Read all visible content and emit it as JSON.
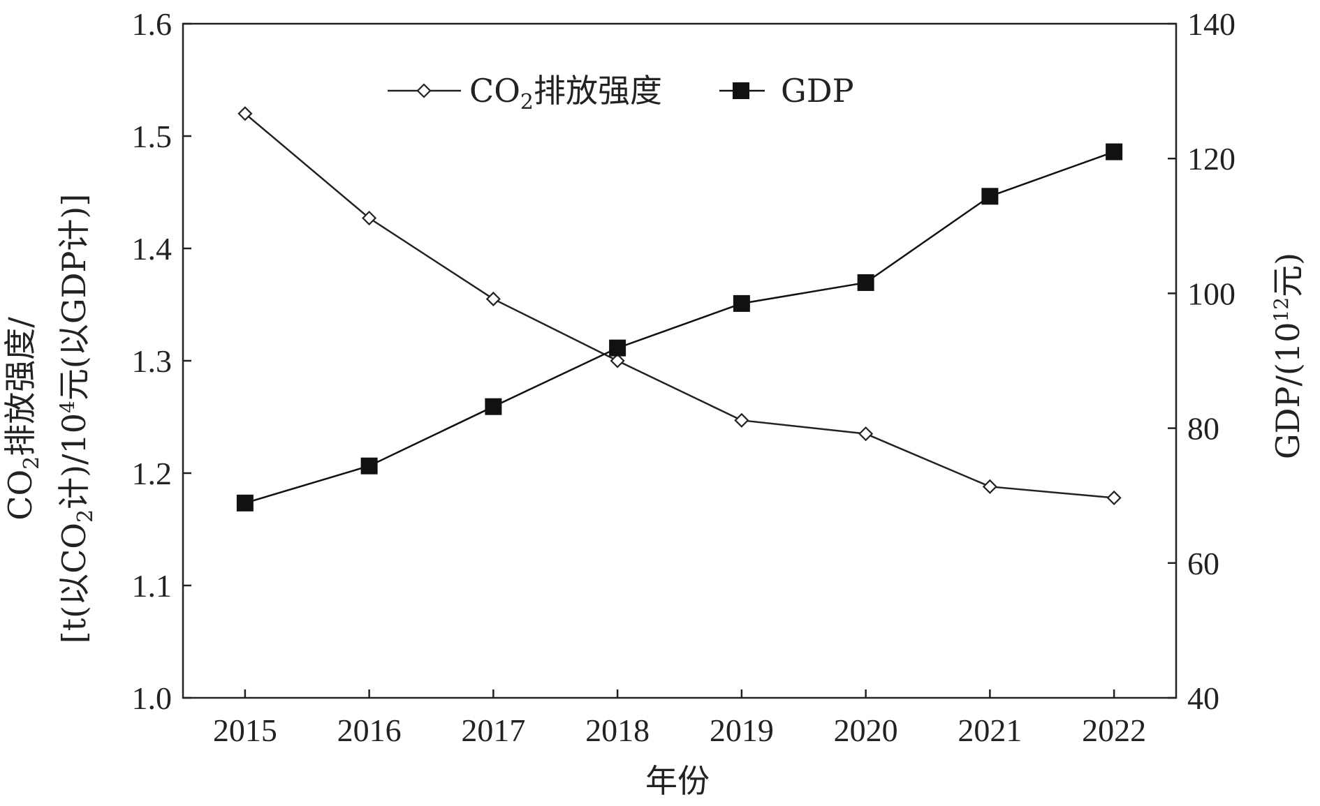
{
  "chart_data": {
    "type": "line",
    "title": "",
    "x": [
      2015,
      2016,
      2017,
      2018,
      2019,
      2020,
      2021,
      2022
    ],
    "xlabel": "年份",
    "y_left": {
      "label_main": "CO",
      "label_sub": "2",
      "label_rest": "排放强度/",
      "label_line2_a": "[t(以CO",
      "label_line2_sub": "2",
      "label_line2_b": "计)/10",
      "label_line2_sup": "4",
      "label_line2_c": "元(以GDP计)]",
      "lim": [
        1.0,
        1.6
      ],
      "ticks": [
        "1.0",
        "1.1",
        "1.2",
        "1.3",
        "1.4",
        "1.5",
        "1.6"
      ]
    },
    "y_right": {
      "label_a": "GDP/(10",
      "label_sup": "12",
      "label_b": "元)",
      "lim": [
        40,
        140
      ],
      "ticks": [
        "40",
        "60",
        "80",
        "100",
        "120",
        "140"
      ]
    },
    "series": [
      {
        "name_main": "CO",
        "name_sub": "2",
        "name_rest": "排放强度",
        "axis": "left",
        "marker": "open-diamond",
        "color": "#222222",
        "values": [
          1.52,
          1.427,
          1.355,
          1.3,
          1.247,
          1.235,
          1.188,
          1.178
        ]
      },
      {
        "name": "GDP",
        "axis": "right",
        "marker": "filled-square",
        "color": "#111111",
        "values": [
          68.9,
          74.4,
          83.2,
          91.9,
          98.5,
          101.6,
          114.4,
          121.0
        ]
      }
    ],
    "legend_position": "top-center",
    "grid": false
  }
}
